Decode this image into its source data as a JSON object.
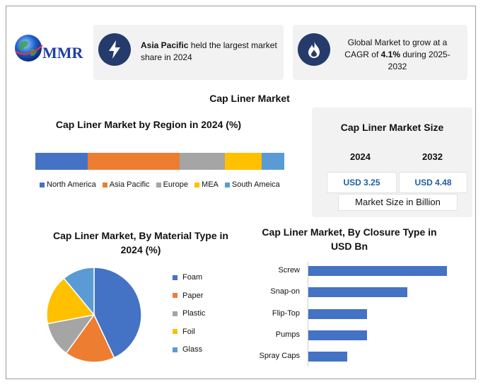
{
  "logo": {
    "text": "MMR"
  },
  "kpi_left": {
    "bold": "Asia Pacific",
    "rest": " held the largest market share in 2024"
  },
  "kpi_right": {
    "line_pre": "Global Market to grow at a CAGR of ",
    "bold": "4.1%",
    "line_post": " during 2025-2032"
  },
  "main_title": "Cap Liner Market",
  "market_size": {
    "title": "Cap Liner Market Size",
    "year_a": "2024",
    "year_b": "2032",
    "value_a": "USD 3.25",
    "value_b": "USD 4.48",
    "footer": "Market Size in Billion"
  },
  "colors": {
    "blue": "#4472c4",
    "orange": "#ed7d31",
    "gray": "#a5a5a5",
    "yellow": "#ffc000",
    "lightblue": "#5b9bd5",
    "navy": "#243b6b",
    "value_text": "#1f5fa0"
  },
  "chart_data": [
    {
      "type": "bar",
      "orientation": "stacked-horizontal",
      "title": "Cap Liner Market by Region in 2024 (%)",
      "series": [
        {
          "name": "North America",
          "values": [
            21
          ],
          "color": "#4472c4"
        },
        {
          "name": "Asia Pacific",
          "values": [
            37
          ],
          "color": "#ed7d31"
        },
        {
          "name": "Europe",
          "values": [
            18
          ],
          "color": "#a5a5a5"
        },
        {
          "name": "MEA",
          "values": [
            15
          ],
          "color": "#ffc000"
        },
        {
          "name": "South Ameica",
          "values": [
            9
          ],
          "color": "#5b9bd5"
        }
      ],
      "legend": "bottom"
    },
    {
      "type": "pie",
      "title": "Cap Liner Market, By Material Type in 2024 (%)",
      "categories": [
        "Foam",
        "Paper",
        "Plastic",
        "Foil",
        "Glass"
      ],
      "values": [
        43,
        17,
        12,
        17,
        11
      ],
      "colors": [
        "#4472c4",
        "#ed7d31",
        "#a5a5a5",
        "#ffc000",
        "#5b9bd5"
      ],
      "legend": "right"
    },
    {
      "type": "bar",
      "orientation": "horizontal",
      "title": "Cap Liner Market, By Closure Type in USD Bn",
      "categories": [
        "Screw",
        "Snap-on",
        "Flip-Top",
        "Pumps",
        "Spray Caps"
      ],
      "values": [
        1.4,
        1.0,
        0.59,
        0.59,
        0.39
      ],
      "xlim": [
        0,
        1.4
      ],
      "color": "#4472c4"
    }
  ]
}
